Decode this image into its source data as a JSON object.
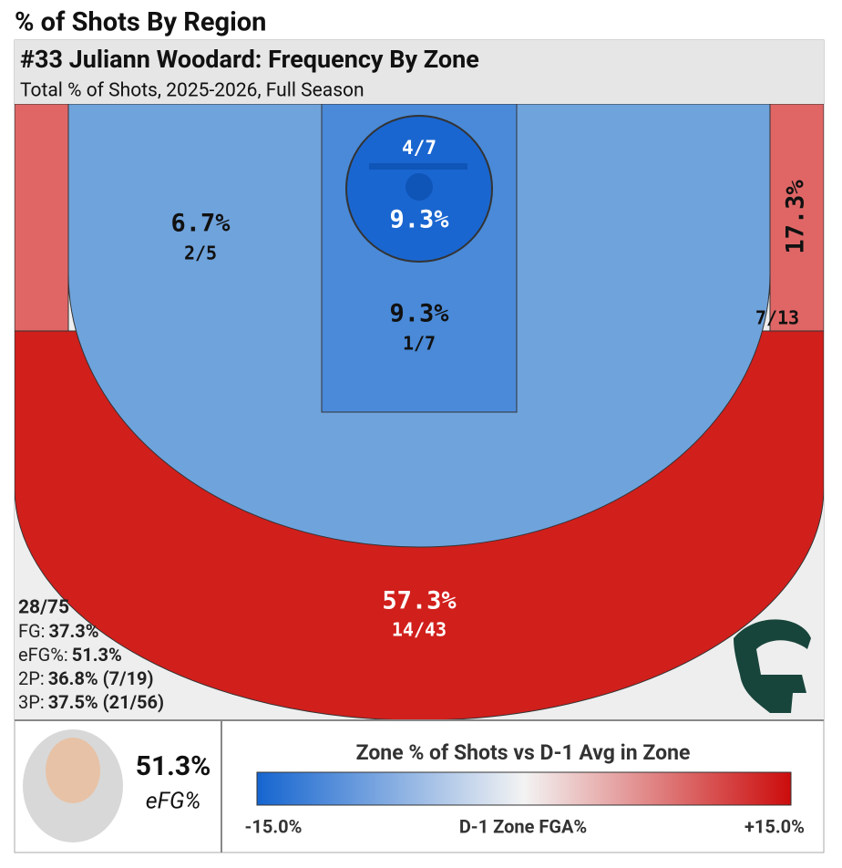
{
  "page_title": "% of Shots By Region",
  "card": {
    "title": "#33 Juliann Woodard: Frequency By Zone",
    "subtitle": "Total % of Shots, 2025-2026, Full Season"
  },
  "zones": {
    "rim": {
      "pct": "9.3%",
      "made": "4/7"
    },
    "paint": {
      "pct": "9.3%",
      "made": "1/7"
    },
    "mid_range": {
      "pct": "6.7%",
      "made": "2/5"
    },
    "right_corner": {
      "pct": "17.3%",
      "made": "7/13"
    },
    "above_break_three": {
      "pct": "57.3%",
      "made": "14/43"
    }
  },
  "stats": {
    "total": "28/75",
    "lines": [
      {
        "label": "FG:",
        "value": "37.3%"
      },
      {
        "label": "eFG%:",
        "value": "51.3%"
      },
      {
        "label": "2P:",
        "value": "36.8% (7/19)"
      },
      {
        "label": "3P:",
        "value": "37.5% (21/56)"
      }
    ]
  },
  "footer": {
    "efg_value": "51.3%",
    "efg_label": "eFG%",
    "legend_title": "Zone % of Shots vs D-1 Avg in Zone",
    "legend_min": "-15.0%",
    "legend_max": "+15.0%",
    "legend_caption": "D-1 Zone FGA%"
  }
}
